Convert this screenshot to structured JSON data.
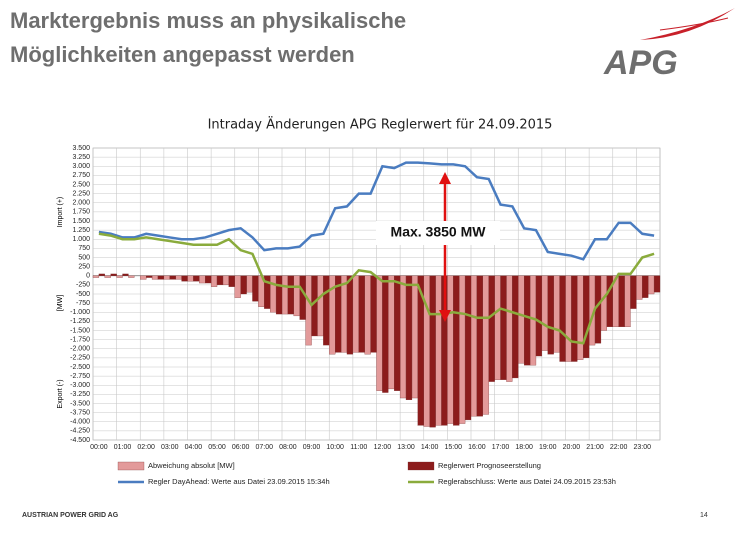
{
  "header": {
    "title": [
      "Marktergebnis muss an physikalische",
      "Möglichkeiten angepasst werden"
    ],
    "logo": "APG"
  },
  "chart_data": {
    "type": "bar",
    "title": "Intraday Änderungen APG Reglerwert für 24.09.2015",
    "y_axis_labels": [
      "Import (+)",
      "[MW]",
      "Export (-)"
    ],
    "categories": [
      "00:00",
      null,
      "01:00",
      null,
      "02:00",
      null,
      "03:00",
      null,
      "04:00",
      null,
      "05:00",
      null,
      "06:00",
      null,
      "07:00",
      null,
      "08:00",
      null,
      "09:00",
      null,
      "10:00",
      null,
      "11:00",
      null,
      "12:00",
      null,
      "13:00",
      null,
      "14:00",
      null,
      "15:00",
      null,
      "16:00",
      null,
      "17:00",
      null,
      "18:00",
      null,
      "19:00",
      null,
      "20:00",
      null,
      "21:00",
      null,
      "22:00",
      null,
      "23:00",
      null
    ],
    "ylim": [
      -4500,
      3500
    ],
    "yticks": [
      {
        "value": 3500,
        "label": "3.500"
      },
      {
        "value": 3250,
        "label": "3.250"
      },
      {
        "value": 3000,
        "label": "3.000"
      },
      {
        "value": 2750,
        "label": "2.750"
      },
      {
        "value": 2500,
        "label": "2.500"
      },
      {
        "value": 2250,
        "label": "2.250"
      },
      {
        "value": 2000,
        "label": "2.000"
      },
      {
        "value": 1750,
        "label": "1.750"
      },
      {
        "value": 1500,
        "label": "1.500"
      },
      {
        "value": 1250,
        "label": "1.250"
      },
      {
        "value": 1000,
        "label": "1.000"
      },
      750,
      500,
      250,
      0,
      -250,
      -500,
      -750,
      {
        "value": -1000,
        "label": "-1.000"
      },
      {
        "value": -1250,
        "label": "-1.250"
      },
      {
        "value": -1500,
        "label": "-1.500"
      },
      {
        "value": -1750,
        "label": "-1.750"
      },
      {
        "value": -2000,
        "label": "-2.000"
      },
      {
        "value": -2250,
        "label": "-2.250"
      },
      {
        "value": -2500,
        "label": "-2.500"
      },
      {
        "value": -2750,
        "label": "-2.750"
      },
      {
        "value": -3000,
        "label": "-3.000"
      },
      {
        "value": -3250,
        "label": "-3.250"
      },
      {
        "value": -3500,
        "label": "-3.500"
      },
      {
        "value": -3750,
        "label": "-3.750"
      },
      {
        "value": -4000,
        "label": "-4.000"
      },
      {
        "value": -4250,
        "label": "-4.250"
      },
      {
        "value": -4500,
        "label": "-4.500"
      }
    ],
    "grid": true,
    "series": [
      {
        "name": "Abweichung absolut [MW]",
        "type": "bar",
        "color": "#e39a9a",
        "values": [
          -50,
          -50,
          -50,
          -50,
          -100,
          -100,
          -100,
          -100,
          -150,
          -200,
          -300,
          -250,
          -600,
          -450,
          -850,
          -1000,
          -1050,
          -1100,
          -1900,
          -1650,
          -2150,
          -2100,
          -2100,
          -2150,
          -3150,
          -3100,
          -3350,
          -3350,
          -4130,
          -4100,
          -4050,
          -4050,
          -3850,
          -3800,
          -2850,
          -2900,
          -2400,
          -2450,
          -2050,
          -2100,
          -2350,
          -2300,
          -1900,
          -1500,
          -1400,
          -1400,
          -650,
          -500
        ]
      },
      {
        "name": "Reglerwert Prognoseerstellung",
        "type": "bar",
        "color": "#8c1c1c",
        "values": [
          50,
          50,
          50,
          0,
          -50,
          -100,
          -100,
          -150,
          -150,
          -200,
          -250,
          -300,
          -500,
          -700,
          -900,
          -1050,
          -1050,
          -1200,
          -1650,
          -1900,
          -2100,
          -2150,
          -2100,
          -2100,
          -3200,
          -3150,
          -3400,
          -4100,
          -4150,
          -4100,
          -4100,
          -3950,
          -3850,
          -2900,
          -2850,
          -2800,
          -2450,
          -2200,
          -2150,
          -2350,
          -2350,
          -2250,
          -1850,
          -1400,
          -1400,
          -900,
          -600,
          -450
        ]
      },
      {
        "name": "Regler DayAhead: Werte aus Datei 23.09.2015 15:34h",
        "type": "line",
        "color": "#4a7cc0",
        "values": [
          1200,
          1150,
          1050,
          1050,
          1150,
          1100,
          1050,
          1000,
          1000,
          1050,
          1150,
          1250,
          1300,
          1050,
          700,
          750,
          750,
          800,
          1100,
          1150,
          1850,
          1900,
          2250,
          2250,
          3000,
          2950,
          3100,
          3100,
          3080,
          3050,
          3050,
          3000,
          2700,
          2650,
          1950,
          1900,
          1300,
          1250,
          650,
          600,
          550,
          450,
          1000,
          1000,
          1450,
          1450,
          1150,
          1100
        ]
      },
      {
        "name": "Reglerabschluss: Werte aus Datei 24.09.2015 23:53h",
        "type": "line",
        "color": "#8aab3c",
        "values": [
          1150,
          1100,
          1000,
          1000,
          1050,
          1000,
          950,
          900,
          850,
          850,
          850,
          1000,
          700,
          600,
          -150,
          -250,
          -300,
          -300,
          -800,
          -500,
          -300,
          -200,
          150,
          100,
          -150,
          -150,
          -250,
          -250,
          -1050,
          -1050,
          -1000,
          -1050,
          -1150,
          -1150,
          -900,
          -1000,
          -1100,
          -1200,
          -1400,
          -1500,
          -1800,
          -1850,
          -900,
          -500,
          50,
          50,
          500,
          600
        ]
      }
    ],
    "annotations": [
      {
        "text": "Max. 3850 MW"
      }
    ]
  },
  "footer": {
    "company": "AUSTRIAN POWER GRID AG",
    "page": 14
  }
}
